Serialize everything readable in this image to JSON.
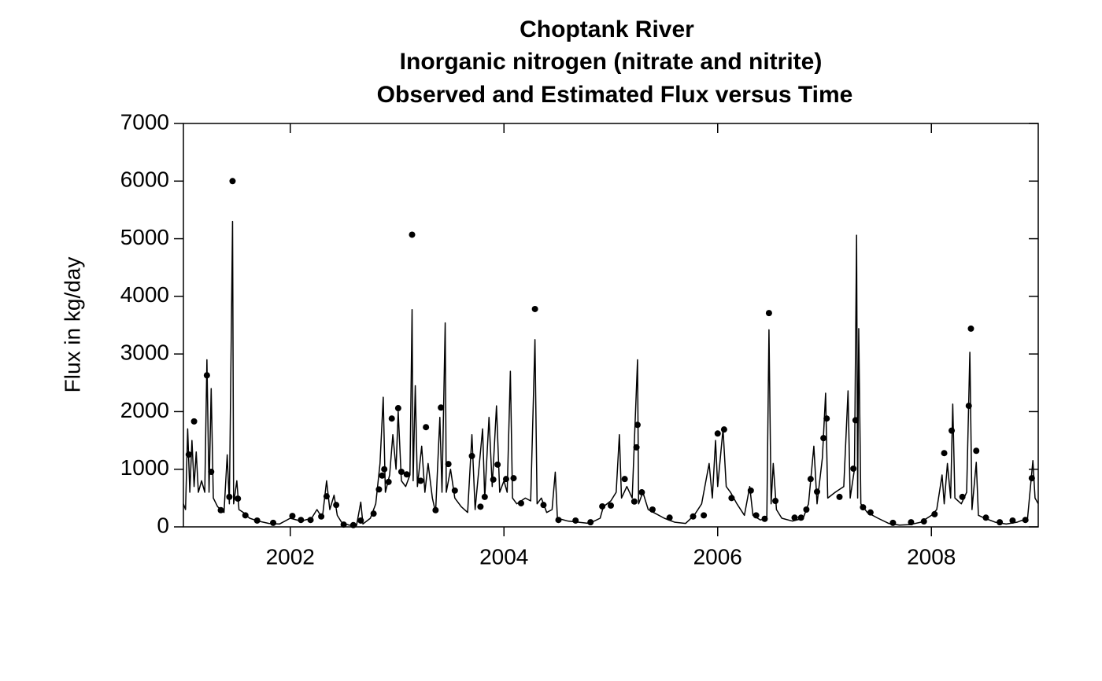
{
  "chart_data": {
    "type": "line",
    "title": [
      "Choptank River",
      "Inorganic nitrogen (nitrate and nitrite)",
      "Observed and Estimated Flux versus Time"
    ],
    "y_label": "Flux in kg/day",
    "xlim": [
      2001,
      2009
    ],
    "xticks": [
      2002,
      2004,
      2006,
      2008
    ],
    "ylim": [
      0,
      7000
    ],
    "yticks": [
      0,
      1000,
      2000,
      3000,
      4000,
      5000,
      6000,
      7000
    ],
    "series": [
      {
        "style": "line",
        "color": "#000000",
        "x": [
          2001.0,
          2001.02,
          2001.04,
          2001.06,
          2001.08,
          2001.1,
          2001.12,
          2001.14,
          2001.17,
          2001.2,
          2001.22,
          2001.24,
          2001.26,
          2001.28,
          2001.32,
          2001.38,
          2001.41,
          2001.43,
          2001.46,
          2001.47,
          2001.5,
          2001.52,
          2001.56,
          2001.62,
          2001.7,
          2001.8,
          2001.9,
          2002.0,
          2002.1,
          2002.2,
          2002.25,
          2002.3,
          2002.34,
          2002.37,
          2002.41,
          2002.44,
          2002.48,
          2002.55,
          2002.62,
          2002.66,
          2002.68,
          2002.75,
          2002.8,
          2002.84,
          2002.87,
          2002.89,
          2002.93,
          2002.96,
          2002.99,
          2003.01,
          2003.04,
          2003.08,
          2003.12,
          2003.14,
          2003.15,
          2003.17,
          2003.19,
          2003.23,
          2003.26,
          2003.29,
          2003.33,
          2003.36,
          2003.4,
          2003.42,
          2003.45,
          2003.46,
          2003.5,
          2003.54,
          2003.6,
          2003.66,
          2003.7,
          2003.73,
          2003.8,
          2003.82,
          2003.86,
          2003.89,
          2003.93,
          2003.96,
          2004.0,
          2004.03,
          2004.06,
          2004.08,
          2004.12,
          2004.2,
          2004.25,
          2004.29,
          2004.31,
          2004.35,
          2004.4,
          2004.45,
          2004.48,
          2004.5,
          2004.6,
          2004.7,
          2004.8,
          2004.9,
          2004.93,
          2005.0,
          2005.05,
          2005.08,
          2005.1,
          2005.15,
          2005.2,
          2005.25,
          2005.26,
          2005.3,
          2005.35,
          2005.4,
          2005.5,
          2005.6,
          2005.7,
          2005.78,
          2005.85,
          2005.92,
          2005.95,
          2005.98,
          2006.0,
          2006.05,
          2006.08,
          2006.12,
          2006.18,
          2006.25,
          2006.3,
          2006.33,
          2006.4,
          2006.46,
          2006.48,
          2006.5,
          2006.52,
          2006.55,
          2006.6,
          2006.7,
          2006.8,
          2006.85,
          2006.9,
          2006.93,
          2006.98,
          2007.01,
          2007.03,
          2007.1,
          2007.18,
          2007.22,
          2007.24,
          2007.28,
          2007.3,
          2007.31,
          2007.32,
          2007.34,
          2007.4,
          2007.5,
          2007.6,
          2007.7,
          2007.8,
          2007.9,
          2008.0,
          2008.05,
          2008.1,
          2008.12,
          2008.15,
          2008.18,
          2008.2,
          2008.22,
          2008.28,
          2008.33,
          2008.36,
          2008.38,
          2008.42,
          2008.44,
          2008.5,
          2008.6,
          2008.7,
          2008.8,
          2008.9,
          2008.95,
          2008.97,
          2009.0
        ],
        "values": [
          400,
          300,
          1700,
          600,
          1500,
          700,
          1300,
          600,
          800,
          600,
          2900,
          600,
          2400,
          500,
          350,
          250,
          1250,
          400,
          5300,
          400,
          800,
          300,
          250,
          150,
          100,
          60,
          50,
          150,
          100,
          150,
          300,
          150,
          800,
          300,
          550,
          200,
          80,
          30,
          20,
          430,
          50,
          150,
          400,
          1100,
          2250,
          600,
          900,
          1600,
          1000,
          2000,
          800,
          700,
          900,
          3770,
          800,
          2450,
          700,
          1400,
          600,
          1100,
          500,
          250,
          1900,
          600,
          3540,
          600,
          1000,
          500,
          350,
          250,
          1600,
          300,
          1700,
          500,
          1900,
          700,
          2100,
          600,
          800,
          600,
          2700,
          500,
          400,
          500,
          450,
          3250,
          400,
          500,
          250,
          300,
          950,
          150,
          100,
          80,
          60,
          150,
          350,
          450,
          600,
          1600,
          500,
          700,
          500,
          2900,
          400,
          600,
          300,
          250,
          150,
          80,
          60,
          200,
          400,
          1100,
          500,
          1500,
          700,
          1700,
          700,
          600,
          400,
          200,
          700,
          200,
          120,
          150,
          3420,
          400,
          1100,
          300,
          150,
          100,
          150,
          400,
          1400,
          400,
          1200,
          2320,
          500,
          600,
          700,
          2360,
          500,
          1000,
          5060,
          500,
          3440,
          400,
          250,
          150,
          60,
          30,
          40,
          80,
          200,
          300,
          900,
          400,
          1100,
          500,
          2130,
          500,
          400,
          600,
          3030,
          300,
          1120,
          200,
          150,
          80,
          50,
          80,
          150,
          1150,
          500,
          400
        ]
      },
      {
        "style": "points",
        "color": "#000000",
        "x": [
          2001.05,
          2001.1,
          2001.22,
          2001.26,
          2001.35,
          2001.43,
          2001.46,
          2001.51,
          2001.58,
          2001.69,
          2001.84,
          2002.02,
          2002.1,
          2002.19,
          2002.29,
          2002.34,
          2002.43,
          2002.5,
          2002.59,
          2002.66,
          2002.78,
          2002.83,
          2002.86,
          2002.88,
          2002.92,
          2002.95,
          2003.01,
          2003.04,
          2003.09,
          2003.14,
          2003.22,
          2003.27,
          2003.36,
          2003.41,
          2003.48,
          2003.54,
          2003.7,
          2003.78,
          2003.82,
          2003.9,
          2003.94,
          2004.02,
          2004.09,
          2004.16,
          2004.29,
          2004.37,
          2004.51,
          2004.67,
          2004.81,
          2004.92,
          2005.0,
          2005.13,
          2005.22,
          2005.24,
          2005.25,
          2005.29,
          2005.39,
          2005.55,
          2005.77,
          2005.87,
          2006.0,
          2006.06,
          2006.13,
          2006.31,
          2006.36,
          2006.44,
          2006.48,
          2006.54,
          2006.72,
          2006.78,
          2006.83,
          2006.87,
          2006.93,
          2006.99,
          2007.02,
          2007.14,
          2007.27,
          2007.29,
          2007.36,
          2007.43,
          2007.64,
          2007.81,
          2007.93,
          2008.03,
          2008.12,
          2008.19,
          2008.29,
          2008.35,
          2008.37,
          2008.42,
          2008.51,
          2008.64,
          2008.76,
          2008.88,
          2008.94
        ],
        "values": [
          1255,
          1830,
          2630,
          955,
          290,
          520,
          6000,
          490,
          200,
          110,
          70,
          190,
          120,
          120,
          180,
          530,
          380,
          40,
          30,
          110,
          230,
          650,
          890,
          1000,
          780,
          1880,
          2060,
          955,
          910,
          5070,
          800,
          1730,
          290,
          2070,
          1090,
          630,
          1230,
          350,
          520,
          820,
          1080,
          830,
          845,
          410,
          3780,
          380,
          120,
          110,
          80,
          355,
          370,
          830,
          440,
          1380,
          1770,
          600,
          300,
          160,
          180,
          200,
          1620,
          1690,
          500,
          630,
          200,
          140,
          3710,
          450,
          160,
          160,
          300,
          830,
          610,
          1540,
          1880,
          520,
          1010,
          1850,
          340,
          250,
          70,
          80,
          95,
          220,
          1280,
          1670,
          520,
          2100,
          3440,
          1320,
          160,
          80,
          110,
          120,
          845
        ]
      }
    ]
  }
}
